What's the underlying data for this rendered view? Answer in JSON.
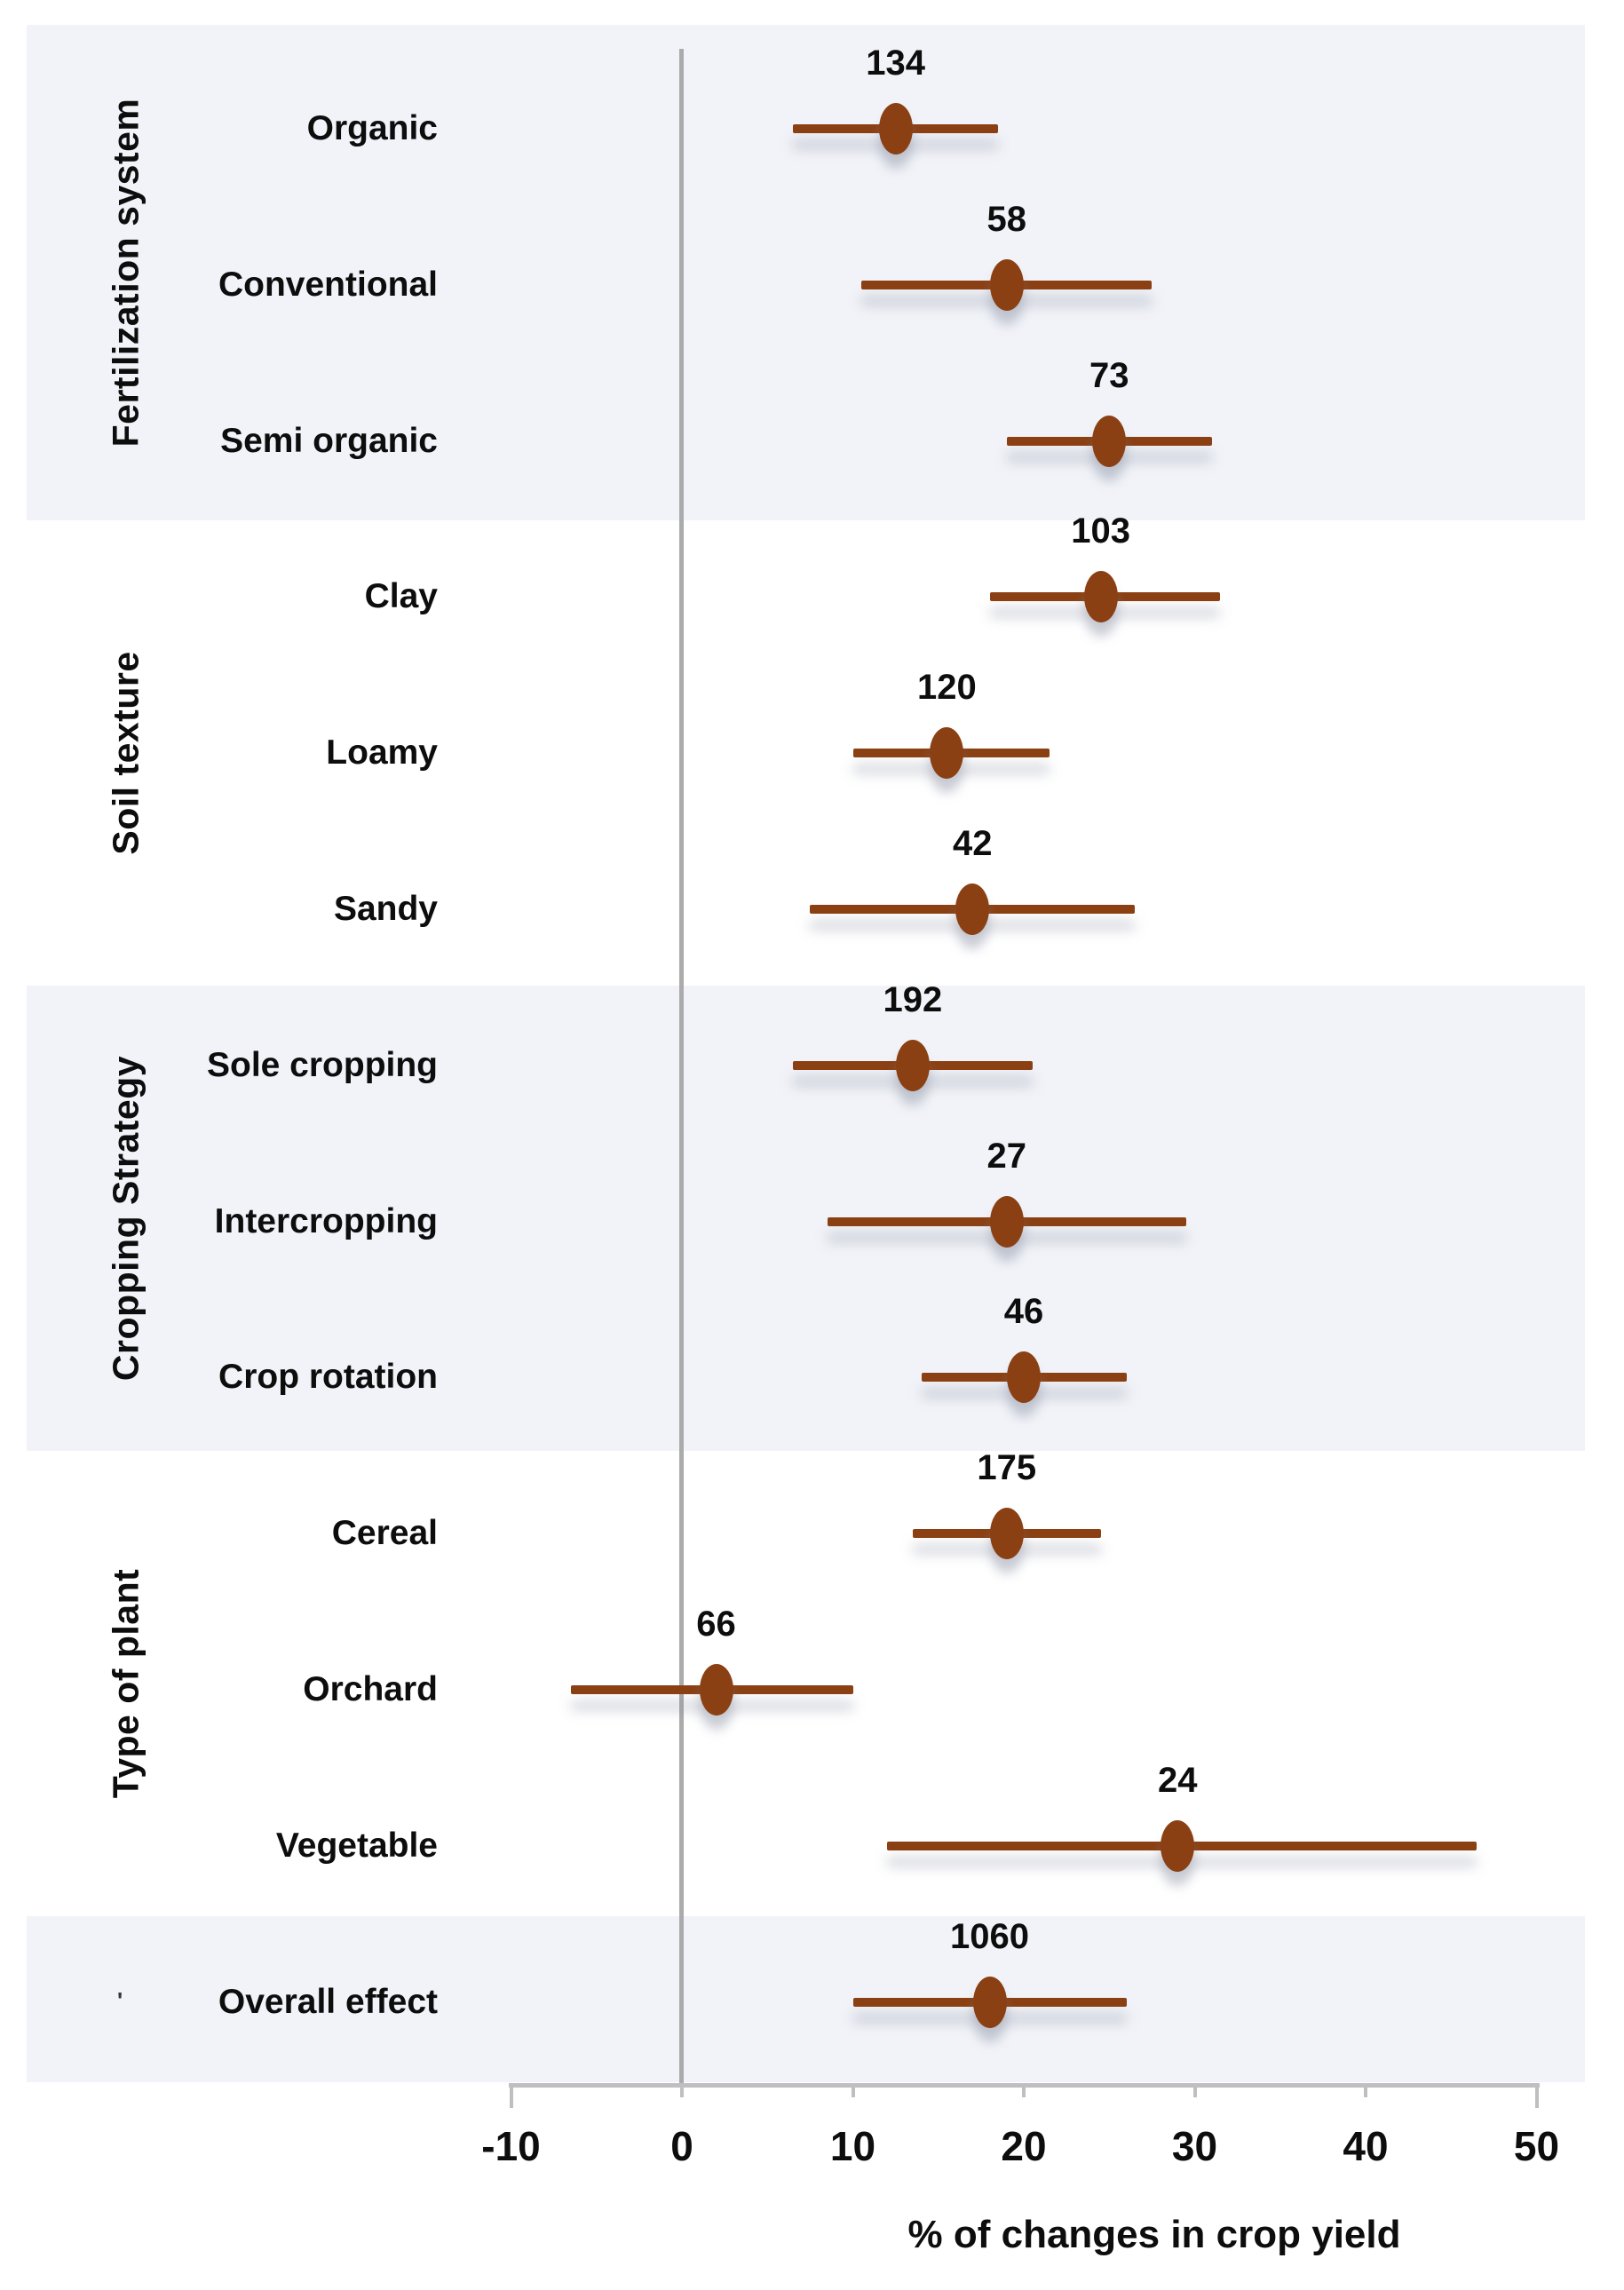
{
  "chart_data": {
    "type": "forest",
    "title": "",
    "xlabel": "% of changes in crop yield",
    "x_axis": {
      "min": -10,
      "max": 50,
      "ticks": [
        -10,
        0,
        10,
        20,
        30,
        40,
        50
      ]
    },
    "legend": "none",
    "grid": "zero-line-only",
    "stray_mark": "'",
    "colors": {
      "marker": "#8B4013",
      "ci_line": "#8B4013",
      "band": "#F1F3F8",
      "zero_line": "#ABABAB",
      "axis": "#BFBFBF",
      "text": "#0d0d0d"
    },
    "groups": [
      {
        "label": "Fertilization system",
        "shaded": true,
        "items": [
          {
            "label": "Organic",
            "n": "134",
            "value": 12.5,
            "ci_low": 6.5,
            "ci_high": 18.5
          },
          {
            "label": "Conventional",
            "n": "58",
            "value": 19,
            "ci_low": 10.5,
            "ci_high": 27.5
          },
          {
            "label": "Semi organic",
            "n": "73",
            "value": 25,
            "ci_low": 19,
            "ci_high": 31
          }
        ]
      },
      {
        "label": "Soil texture",
        "shaded": false,
        "items": [
          {
            "label": "Clay",
            "n": "103",
            "value": 24.5,
            "ci_low": 18,
            "ci_high": 31.5
          },
          {
            "label": "Loamy",
            "n": "120",
            "value": 15.5,
            "ci_low": 10,
            "ci_high": 21.5
          },
          {
            "label": "Sandy",
            "n": "42",
            "value": 17,
            "ci_low": 7.5,
            "ci_high": 26.5
          }
        ]
      },
      {
        "label": "Cropping Strategy",
        "shaded": true,
        "items": [
          {
            "label": "Sole cropping",
            "n": "192",
            "value": 13.5,
            "ci_low": 6.5,
            "ci_high": 20.5
          },
          {
            "label": "Intercropping",
            "n": "27",
            "value": 19,
            "ci_low": 8.5,
            "ci_high": 29.5
          },
          {
            "label": "Crop rotation",
            "n": "46",
            "value": 20,
            "ci_low": 14,
            "ci_high": 26
          }
        ]
      },
      {
        "label": "Type of plant",
        "shaded": false,
        "items": [
          {
            "label": "Cereal",
            "n": "175",
            "value": 19,
            "ci_low": 13.5,
            "ci_high": 24.5
          },
          {
            "label": "Orchard",
            "n": "66",
            "value": 2,
            "ci_low": -6.5,
            "ci_high": 10
          },
          {
            "label": "Vegetable",
            "n": "24",
            "value": 29,
            "ci_low": 12,
            "ci_high": 46.5
          }
        ]
      },
      {
        "label": "",
        "shaded": true,
        "items": [
          {
            "label": "Overall effect",
            "n": "1060",
            "value": 18,
            "ci_low": 10,
            "ci_high": 26
          }
        ]
      }
    ]
  }
}
